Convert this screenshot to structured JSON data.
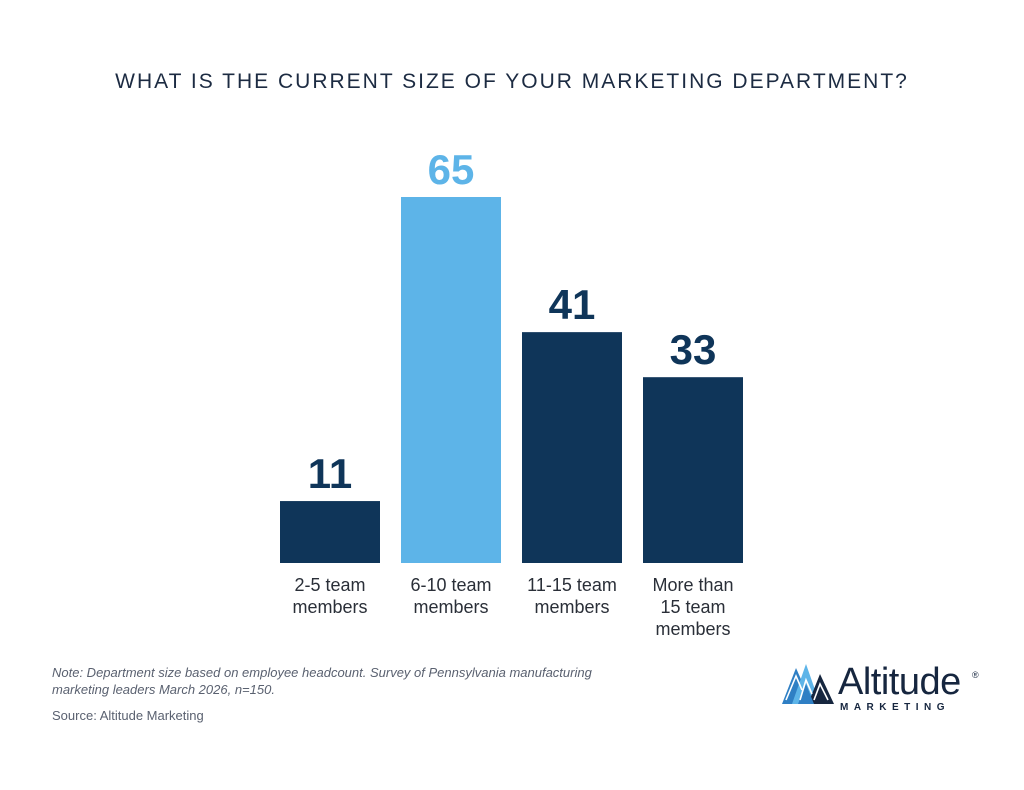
{
  "chart_data": {
    "type": "bar",
    "title": "WHAT IS THE CURRENT SIZE OF YOUR MARKETING DEPARTMENT?",
    "categories": [
      [
        "2-5 team",
        "members"
      ],
      [
        "6-10 team",
        "members"
      ],
      [
        "11-15 team",
        "members"
      ],
      [
        "More than",
        "15 team",
        "members"
      ]
    ],
    "values": [
      11,
      65,
      41,
      33
    ],
    "highlight_index": 1,
    "xlabel": "",
    "ylabel": "",
    "ylim": [
      0,
      65
    ],
    "grid": false,
    "legend": "none",
    "colors": {
      "bar": "#0f3559",
      "highlight": "#5db4e8",
      "label_dark": "#0f3559",
      "label_highlight": "#5db4e8",
      "category_text": "#2a2f38"
    }
  },
  "footer": {
    "note": "Note: Department size based on employee headcount. Survey of Pennsylvania manufacturing marketing leaders March 2026, n=150.",
    "source": "Source: Altitude Marketing"
  },
  "logo": {
    "word": "Altitude",
    "registered": "®",
    "sub": "MARKETING",
    "icon": "mountain-peaks-icon",
    "colors": {
      "light": "#5db4e8",
      "mid": "#2f7fc4",
      "dark": "#16263f"
    }
  }
}
